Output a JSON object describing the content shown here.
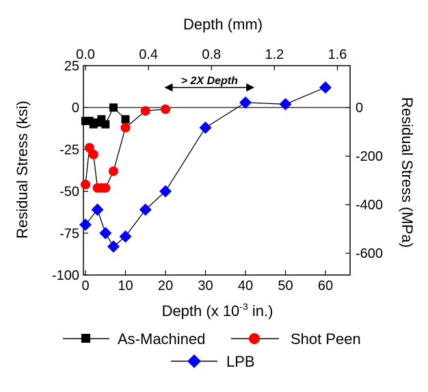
{
  "chart_data": {
    "type": "line",
    "xlabel_bottom": "Depth (x 10",
    "xlabel_bottom_exp": "-3",
    "xlabel_bottom_unit": " in.)",
    "xlabel_top": "Depth (mm)",
    "ylabel_left": "Residual Stress (ksi)",
    "ylabel_right": "Residual Stress (MPa)",
    "xlim": [
      0,
      65
    ],
    "ylim": [
      -100,
      25
    ],
    "x_ticks": [
      "0",
      "10",
      "20",
      "30",
      "40",
      "50",
      "60"
    ],
    "x_tick_values": [
      0,
      10,
      20,
      30,
      40,
      50,
      60
    ],
    "y_ticks": [
      "25",
      "0",
      "-25",
      "-50",
      "-75",
      "-100"
    ],
    "y_tick_values": [
      25,
      0,
      -25,
      -50,
      -75,
      -100
    ],
    "top_ticks": [
      "0.0",
      "0.4",
      "0.8",
      "1.2",
      "1.6"
    ],
    "top_tick_values_mm": [
      0,
      0.4,
      0.8,
      1.2,
      1.6
    ],
    "right_ticks": [
      "0",
      "-200",
      "-400",
      "-600"
    ],
    "right_tick_values_mpa": [
      0,
      -200,
      -400,
      -600
    ],
    "grid": false,
    "zero_line": true,
    "annotation": {
      "text": "> 2X Depth",
      "x_from": 20,
      "x_to": 42,
      "y": 12
    },
    "legend_position": "bottom",
    "series": [
      {
        "name": "As-Machined",
        "color": "#000000",
        "marker": "square",
        "x": [
          0,
          1,
          2,
          3,
          4,
          5,
          7,
          10
        ],
        "y": [
          -8,
          -8,
          -10,
          -9,
          -7,
          -10,
          0,
          -7
        ]
      },
      {
        "name": "Shot Peen",
        "color": "#ff0000",
        "marker": "circle",
        "x": [
          0,
          1,
          2,
          3,
          4,
          5,
          7,
          10,
          15,
          20
        ],
        "y": [
          -46,
          -24,
          -28,
          -48,
          -48,
          -48,
          -38,
          -12,
          -2,
          -1
        ]
      },
      {
        "name": "LPB",
        "color": "#0000ff",
        "marker": "diamond",
        "x": [
          0,
          3,
          5,
          7,
          10,
          15,
          20,
          30,
          40,
          50,
          60
        ],
        "y": [
          -70,
          -61,
          -75,
          -83,
          -77,
          -61,
          -50,
          -12,
          3,
          2,
          12
        ]
      }
    ]
  }
}
